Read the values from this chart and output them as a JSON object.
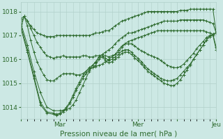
{
  "background_color": "#cce8e4",
  "line_color": "#2d6a2d",
  "grid_color": "#b0cfc9",
  "xlabel": "Pression niveau de la mer( hPa )",
  "ylim": [
    1013.5,
    1018.4
  ],
  "yticks": [
    1014,
    1015,
    1016,
    1017,
    1018
  ],
  "xtick_labels": [
    "",
    "Mar",
    "",
    "Mer",
    "",
    "Jeu"
  ],
  "xtick_positions": [
    0,
    48,
    96,
    144,
    192,
    240
  ],
  "total_x": 240,
  "lines": [
    {
      "points": [
        [
          0,
          1017.3
        ],
        [
          4,
          1017.8
        ],
        [
          8,
          1017.6
        ],
        [
          12,
          1017.4
        ],
        [
          16,
          1017.25
        ],
        [
          20,
          1017.1
        ],
        [
          24,
          1017.05
        ],
        [
          28,
          1017.0
        ],
        [
          32,
          1016.95
        ],
        [
          36,
          1016.95
        ],
        [
          40,
          1016.95
        ],
        [
          44,
          1017.0
        ],
        [
          48,
          1017.0
        ],
        [
          52,
          1017.0
        ],
        [
          56,
          1017.0
        ],
        [
          60,
          1017.0
        ],
        [
          64,
          1017.0
        ],
        [
          68,
          1017.0
        ],
        [
          72,
          1017.0
        ],
        [
          76,
          1017.0
        ],
        [
          80,
          1017.0
        ],
        [
          84,
          1017.0
        ],
        [
          88,
          1017.05
        ],
        [
          92,
          1017.1
        ],
        [
          96,
          1017.1
        ],
        [
          100,
          1017.15
        ],
        [
          104,
          1017.2
        ],
        [
          108,
          1017.2
        ],
        [
          112,
          1017.3
        ],
        [
          116,
          1017.4
        ],
        [
          120,
          1017.5
        ],
        [
          124,
          1017.6
        ],
        [
          128,
          1017.65
        ],
        [
          132,
          1017.7
        ],
        [
          136,
          1017.75
        ],
        [
          140,
          1017.8
        ],
        [
          144,
          1017.85
        ],
        [
          148,
          1017.9
        ],
        [
          152,
          1017.95
        ],
        [
          156,
          1018.0
        ],
        [
          160,
          1018.0
        ],
        [
          164,
          1018.0
        ],
        [
          168,
          1018.0
        ],
        [
          172,
          1018.0
        ],
        [
          176,
          1018.0
        ],
        [
          180,
          1018.0
        ],
        [
          184,
          1018.0
        ],
        [
          188,
          1018.0
        ],
        [
          192,
          1018.0
        ],
        [
          196,
          1018.05
        ],
        [
          200,
          1018.05
        ],
        [
          204,
          1018.05
        ],
        [
          208,
          1018.1
        ],
        [
          212,
          1018.1
        ],
        [
          216,
          1018.1
        ],
        [
          220,
          1018.1
        ],
        [
          224,
          1018.1
        ],
        [
          228,
          1018.1
        ],
        [
          232,
          1018.1
        ],
        [
          236,
          1018.1
        ],
        [
          240,
          1017.1
        ]
      ]
    },
    {
      "points": [
        [
          0,
          1017.5
        ],
        [
          4,
          1017.8
        ],
        [
          8,
          1017.6
        ],
        [
          12,
          1017.3
        ],
        [
          16,
          1017.0
        ],
        [
          20,
          1016.7
        ],
        [
          24,
          1016.5
        ],
        [
          28,
          1016.3
        ],
        [
          32,
          1016.15
        ],
        [
          36,
          1016.1
        ],
        [
          40,
          1016.05
        ],
        [
          44,
          1016.1
        ],
        [
          48,
          1016.1
        ],
        [
          52,
          1016.15
        ],
        [
          56,
          1016.1
        ],
        [
          60,
          1016.1
        ],
        [
          64,
          1016.1
        ],
        [
          68,
          1016.1
        ],
        [
          72,
          1016.1
        ],
        [
          76,
          1016.15
        ],
        [
          80,
          1016.15
        ],
        [
          84,
          1016.1
        ],
        [
          88,
          1016.1
        ],
        [
          92,
          1016.15
        ],
        [
          96,
          1016.15
        ],
        [
          100,
          1016.2
        ],
        [
          104,
          1016.3
        ],
        [
          108,
          1016.4
        ],
        [
          112,
          1016.5
        ],
        [
          116,
          1016.65
        ],
        [
          120,
          1016.8
        ],
        [
          124,
          1016.9
        ],
        [
          128,
          1017.0
        ],
        [
          132,
          1017.1
        ],
        [
          136,
          1017.1
        ],
        [
          140,
          1017.15
        ],
        [
          144,
          1017.2
        ],
        [
          148,
          1017.25
        ],
        [
          152,
          1017.3
        ],
        [
          156,
          1017.35
        ],
        [
          160,
          1017.4
        ],
        [
          164,
          1017.45
        ],
        [
          168,
          1017.5
        ],
        [
          172,
          1017.55
        ],
        [
          176,
          1017.6
        ],
        [
          180,
          1017.6
        ],
        [
          184,
          1017.6
        ],
        [
          188,
          1017.6
        ],
        [
          192,
          1017.6
        ],
        [
          196,
          1017.65
        ],
        [
          200,
          1017.65
        ],
        [
          204,
          1017.65
        ],
        [
          208,
          1017.65
        ],
        [
          212,
          1017.65
        ],
        [
          216,
          1017.65
        ],
        [
          220,
          1017.65
        ],
        [
          224,
          1017.65
        ],
        [
          228,
          1017.6
        ],
        [
          232,
          1017.55
        ],
        [
          236,
          1017.5
        ],
        [
          240,
          1017.1
        ]
      ]
    },
    {
      "points": [
        [
          0,
          1017.7
        ],
        [
          4,
          1017.8
        ],
        [
          8,
          1017.4
        ],
        [
          12,
          1016.8
        ],
        [
          16,
          1016.3
        ],
        [
          20,
          1015.9
        ],
        [
          24,
          1015.6
        ],
        [
          28,
          1015.35
        ],
        [
          32,
          1015.15
        ],
        [
          36,
          1015.1
        ],
        [
          40,
          1015.1
        ],
        [
          44,
          1015.2
        ],
        [
          48,
          1015.3
        ],
        [
          52,
          1015.4
        ],
        [
          56,
          1015.4
        ],
        [
          60,
          1015.4
        ],
        [
          64,
          1015.4
        ],
        [
          68,
          1015.35
        ],
        [
          72,
          1015.35
        ],
        [
          76,
          1015.4
        ],
        [
          80,
          1015.5
        ],
        [
          84,
          1015.6
        ],
        [
          88,
          1015.65
        ],
        [
          92,
          1015.7
        ],
        [
          96,
          1015.75
        ],
        [
          100,
          1015.8
        ],
        [
          104,
          1015.9
        ],
        [
          108,
          1016.0
        ],
        [
          112,
          1016.1
        ],
        [
          116,
          1016.2
        ],
        [
          120,
          1016.4
        ],
        [
          124,
          1016.55
        ],
        [
          128,
          1016.65
        ],
        [
          132,
          1016.75
        ],
        [
          136,
          1016.8
        ],
        [
          140,
          1016.85
        ],
        [
          144,
          1016.9
        ],
        [
          148,
          1016.95
        ],
        [
          152,
          1017.0
        ],
        [
          156,
          1017.05
        ],
        [
          160,
          1017.1
        ],
        [
          164,
          1017.15
        ],
        [
          168,
          1017.2
        ],
        [
          172,
          1017.2
        ],
        [
          176,
          1017.2
        ],
        [
          180,
          1017.2
        ],
        [
          184,
          1017.2
        ],
        [
          188,
          1017.2
        ],
        [
          192,
          1017.2
        ],
        [
          196,
          1017.2
        ],
        [
          200,
          1017.2
        ],
        [
          204,
          1017.2
        ],
        [
          208,
          1017.2
        ],
        [
          212,
          1017.2
        ],
        [
          216,
          1017.2
        ],
        [
          220,
          1017.2
        ],
        [
          224,
          1017.2
        ],
        [
          228,
          1017.15
        ],
        [
          232,
          1017.1
        ],
        [
          236,
          1017.05
        ],
        [
          240,
          1017.1
        ]
      ]
    },
    {
      "points": [
        [
          0,
          1017.5
        ],
        [
          8,
          1016.6
        ],
        [
          16,
          1015.5
        ],
        [
          24,
          1014.6
        ],
        [
          32,
          1014.0
        ],
        [
          40,
          1013.85
        ],
        [
          48,
          1013.85
        ],
        [
          56,
          1013.9
        ],
        [
          60,
          1013.95
        ],
        [
          64,
          1014.1
        ],
        [
          68,
          1014.3
        ],
        [
          72,
          1014.6
        ],
        [
          76,
          1014.9
        ],
        [
          80,
          1015.2
        ],
        [
          84,
          1015.5
        ],
        [
          88,
          1015.75
        ],
        [
          92,
          1015.9
        ],
        [
          96,
          1016.1
        ],
        [
          100,
          1016.15
        ],
        [
          104,
          1016.15
        ],
        [
          108,
          1016.1
        ],
        [
          112,
          1016.15
        ],
        [
          116,
          1016.2
        ],
        [
          120,
          1016.3
        ],
        [
          124,
          1016.5
        ],
        [
          128,
          1016.65
        ],
        [
          132,
          1016.65
        ],
        [
          136,
          1016.65
        ],
        [
          140,
          1016.55
        ],
        [
          144,
          1016.45
        ],
        [
          148,
          1016.35
        ],
        [
          152,
          1016.3
        ],
        [
          156,
          1016.2
        ],
        [
          160,
          1016.15
        ],
        [
          164,
          1016.1
        ],
        [
          168,
          1016.05
        ],
        [
          172,
          1015.95
        ],
        [
          176,
          1015.85
        ],
        [
          180,
          1015.75
        ],
        [
          184,
          1015.7
        ],
        [
          188,
          1015.65
        ],
        [
          192,
          1015.65
        ],
        [
          196,
          1015.7
        ],
        [
          200,
          1015.8
        ],
        [
          204,
          1015.95
        ],
        [
          208,
          1016.1
        ],
        [
          212,
          1016.25
        ],
        [
          216,
          1016.45
        ],
        [
          220,
          1016.6
        ],
        [
          224,
          1016.75
        ],
        [
          228,
          1016.9
        ],
        [
          232,
          1017.0
        ],
        [
          236,
          1017.05
        ],
        [
          240,
          1017.1
        ]
      ]
    },
    {
      "points": [
        [
          0,
          1017.4
        ],
        [
          8,
          1016.4
        ],
        [
          16,
          1015.3
        ],
        [
          24,
          1014.2
        ],
        [
          32,
          1013.8
        ],
        [
          40,
          1013.75
        ],
        [
          44,
          1013.7
        ],
        [
          48,
          1013.75
        ],
        [
          52,
          1013.85
        ],
        [
          56,
          1014.0
        ],
        [
          60,
          1014.2
        ],
        [
          64,
          1014.5
        ],
        [
          68,
          1014.8
        ],
        [
          72,
          1015.05
        ],
        [
          76,
          1015.3
        ],
        [
          80,
          1015.5
        ],
        [
          84,
          1015.65
        ],
        [
          88,
          1015.75
        ],
        [
          92,
          1015.85
        ],
        [
          96,
          1016.1
        ],
        [
          100,
          1016.15
        ],
        [
          104,
          1016.05
        ],
        [
          108,
          1015.95
        ],
        [
          112,
          1016.0
        ],
        [
          116,
          1016.1
        ],
        [
          120,
          1016.2
        ],
        [
          124,
          1016.35
        ],
        [
          128,
          1016.4
        ],
        [
          132,
          1016.4
        ],
        [
          136,
          1016.3
        ],
        [
          140,
          1016.15
        ],
        [
          144,
          1016.05
        ],
        [
          148,
          1015.9
        ],
        [
          152,
          1015.75
        ],
        [
          156,
          1015.6
        ],
        [
          160,
          1015.5
        ],
        [
          164,
          1015.4
        ],
        [
          168,
          1015.3
        ],
        [
          172,
          1015.2
        ],
        [
          176,
          1015.15
        ],
        [
          180,
          1015.1
        ],
        [
          184,
          1015.1
        ],
        [
          188,
          1015.15
        ],
        [
          192,
          1015.2
        ],
        [
          196,
          1015.35
        ],
        [
          200,
          1015.5
        ],
        [
          204,
          1015.65
        ],
        [
          208,
          1015.8
        ],
        [
          212,
          1016.0
        ],
        [
          216,
          1016.2
        ],
        [
          220,
          1016.4
        ],
        [
          224,
          1016.6
        ],
        [
          228,
          1016.8
        ],
        [
          232,
          1016.95
        ],
        [
          236,
          1017.05
        ],
        [
          240,
          1016.5
        ]
      ]
    },
    {
      "points": [
        [
          0,
          1017.3
        ],
        [
          8,
          1016.3
        ],
        [
          16,
          1015.2
        ],
        [
          24,
          1014.1
        ],
        [
          32,
          1013.75
        ],
        [
          40,
          1013.7
        ],
        [
          44,
          1013.65
        ],
        [
          48,
          1013.7
        ],
        [
          52,
          1013.8
        ],
        [
          56,
          1013.95
        ],
        [
          60,
          1014.15
        ],
        [
          64,
          1014.4
        ],
        [
          68,
          1014.7
        ],
        [
          72,
          1014.95
        ],
        [
          76,
          1015.2
        ],
        [
          80,
          1015.4
        ],
        [
          84,
          1015.55
        ],
        [
          88,
          1015.65
        ],
        [
          92,
          1015.75
        ],
        [
          96,
          1016.0
        ],
        [
          100,
          1016.1
        ],
        [
          104,
          1015.95
        ],
        [
          108,
          1015.85
        ],
        [
          112,
          1015.9
        ],
        [
          116,
          1016.0
        ],
        [
          120,
          1016.1
        ],
        [
          124,
          1016.25
        ],
        [
          128,
          1016.3
        ],
        [
          132,
          1016.3
        ],
        [
          136,
          1016.2
        ],
        [
          140,
          1016.05
        ],
        [
          144,
          1015.95
        ],
        [
          148,
          1015.8
        ],
        [
          152,
          1015.65
        ],
        [
          156,
          1015.5
        ],
        [
          160,
          1015.4
        ],
        [
          164,
          1015.3
        ],
        [
          168,
          1015.2
        ],
        [
          172,
          1015.1
        ],
        [
          176,
          1015.0
        ],
        [
          180,
          1014.95
        ],
        [
          184,
          1014.9
        ],
        [
          188,
          1014.9
        ],
        [
          192,
          1015.0
        ],
        [
          196,
          1015.15
        ],
        [
          200,
          1015.35
        ],
        [
          204,
          1015.55
        ],
        [
          208,
          1015.75
        ],
        [
          212,
          1016.0
        ],
        [
          216,
          1016.2
        ],
        [
          220,
          1016.4
        ],
        [
          224,
          1016.6
        ],
        [
          228,
          1016.8
        ],
        [
          232,
          1016.95
        ],
        [
          236,
          1017.0
        ],
        [
          240,
          1016.4
        ]
      ]
    }
  ]
}
